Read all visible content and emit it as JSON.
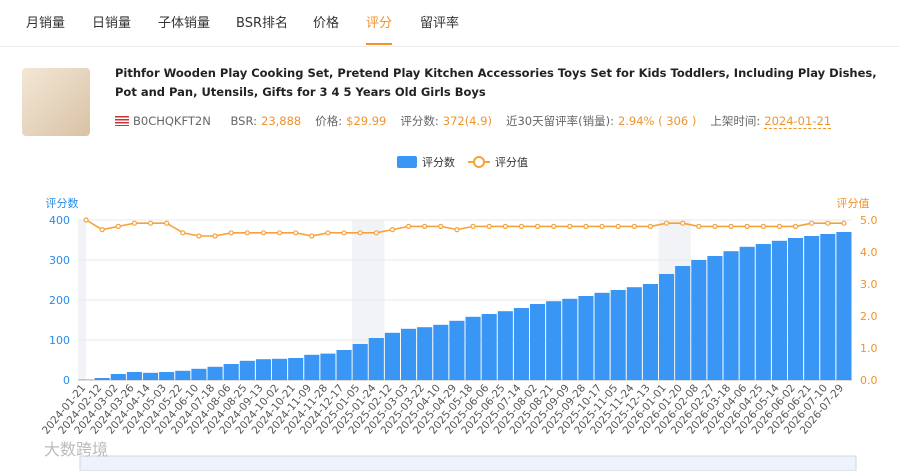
{
  "tabs": [
    "月销量",
    "日销量",
    "子体销量",
    "BSR排名",
    "价格",
    "评分",
    "留评率"
  ],
  "active_tab": 5,
  "product": {
    "title": "Pithfor Wooden Play Cooking Set, Pretend Play Kitchen Accessories Toys Set for Kids Toddlers, Including Play Dishes, Pot and Pan, Utensils, Gifts for 3 4 5 Years Old Girls Boys",
    "asin": "B0CHQKFT2N",
    "stats": [
      {
        "label": "BSR:",
        "value": "23,888"
      },
      {
        "label": "价格:",
        "value": "$29.99"
      },
      {
        "label": "评分数:",
        "value": "372(4.9)"
      },
      {
        "label": "近30天留评率(销量):",
        "value": "2.94% ( 306 )"
      },
      {
        "label": "上架时间:",
        "value": "2024-01-21"
      }
    ]
  },
  "watermark": "大数跨境",
  "chart_data": {
    "type": "bar-line",
    "y_label": "评分数",
    "y2_label": "评分值",
    "categories": [
      "2024-01-21",
      "2024-02-12",
      "2024-03-02",
      "2024-03-26",
      "2024-04-14",
      "2024-05-03",
      "2024-05-22",
      "2024-06-10",
      "2024-07-18",
      "2024-08-06",
      "2024-08-25",
      "2024-09-13",
      "2024-10-02",
      "2024-10-21",
      "2024-11-09",
      "2024-11-28",
      "2024-12-17",
      "2025-01-05",
      "2025-01-24",
      "2025-02-12",
      "2025-03-03",
      "2025-03-22",
      "2025-04-10",
      "2025-04-29",
      "2025-05-18",
      "2025-06-06",
      "2025-06-25",
      "2025-07-14",
      "2025-08-02",
      "2025-08-21",
      "2025-09-09",
      "2025-09-28",
      "2025-10-17",
      "2025-11-05",
      "2025-11-24",
      "2025-12-13",
      "2026-01-01",
      "2026-01-20",
      "2026-02-08",
      "2026-02-27",
      "2026-03-18",
      "2026-04-06",
      "2026-04-25",
      "2026-05-14",
      "2026-06-02",
      "2026-06-21",
      "2026-07-10",
      "2026-07-29"
    ],
    "series": [
      {
        "name": "评分数",
        "type": "bar",
        "color": "#3a96f5",
        "values": [
          1,
          5,
          15,
          20,
          18,
          20,
          23,
          28,
          33,
          40,
          48,
          52,
          53,
          55,
          63,
          66,
          75,
          90,
          105,
          118,
          128,
          132,
          138,
          148,
          158,
          165,
          172,
          180,
          190,
          197,
          203,
          210,
          218,
          225,
          232,
          240,
          265,
          285,
          300,
          310,
          322,
          333,
          340,
          348,
          355,
          360,
          365,
          370
        ]
      },
      {
        "name": "评分值",
        "type": "line",
        "axis": "y2",
        "color": "#f5a23c",
        "values": [
          5.0,
          4.7,
          4.8,
          4.9,
          4.9,
          4.9,
          4.6,
          4.5,
          4.5,
          4.6,
          4.6,
          4.6,
          4.6,
          4.6,
          4.5,
          4.6,
          4.6,
          4.6,
          4.6,
          4.7,
          4.8,
          4.8,
          4.8,
          4.7,
          4.8,
          4.8,
          4.8,
          4.8,
          4.8,
          4.8,
          4.8,
          4.8,
          4.8,
          4.8,
          4.8,
          4.8,
          4.9,
          4.9,
          4.8,
          4.8,
          4.8,
          4.8,
          4.8,
          4.8,
          4.8,
          4.9,
          4.9,
          4.9
        ]
      }
    ],
    "ylim": [
      0,
      400
    ],
    "yticks": [
      0,
      100,
      200,
      300,
      400
    ],
    "y2lim": [
      0,
      5
    ],
    "y2ticks": [
      {
        "value": 0,
        "label": "0.0"
      },
      {
        "value": 1,
        "label": "1.0"
      },
      {
        "value": 2,
        "label": "2.0"
      },
      {
        "value": 3,
        "label": "3.0"
      },
      {
        "value": 4,
        "label": "4.0"
      },
      {
        "value": 5,
        "label": "5.0"
      }
    ],
    "grid": true
  }
}
